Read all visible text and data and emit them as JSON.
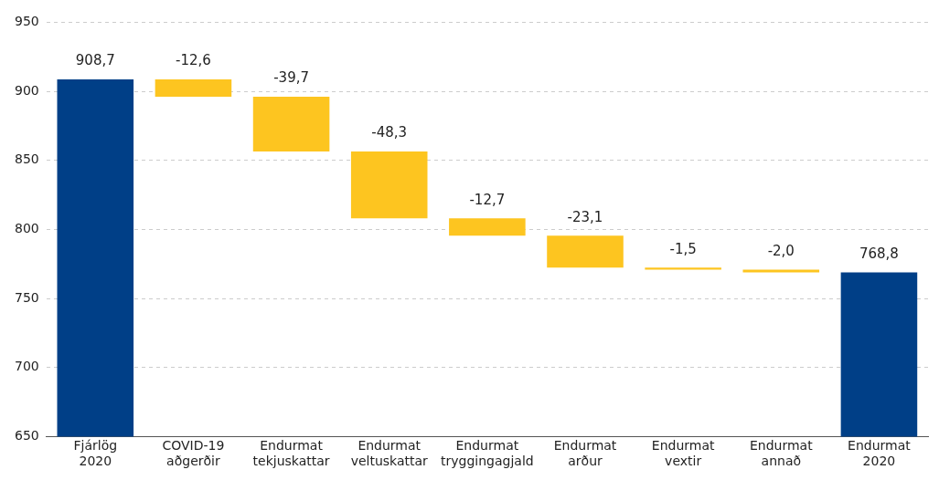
{
  "chart_data": {
    "type": "bar",
    "categories": [
      "Fjárlög\n2020",
      "COVID-19\naðgerðir",
      "Endurmat\ntekjuskattar",
      "Endurmat\nveltuskattar",
      "Endurmat\ntryggingagjald",
      "Endurmat\narður",
      "Endurmat\nvextir",
      "Endurmat\nannað",
      "Endurmat\n2020"
    ],
    "values": [
      908.7,
      -12.6,
      -39.7,
      -48.3,
      -12.7,
      -23.1,
      -1.5,
      -2.0,
      768.8
    ],
    "base": [
      0,
      908.7,
      896.1,
      856.4,
      808.1,
      795.4,
      772.3,
      770.8,
      0
    ],
    "colors": [
      "#003f87",
      "#fdc520",
      "#fdc520",
      "#fdc520",
      "#fdc520",
      "#fdc520",
      "#fdc520",
      "#fdc520",
      "#003f87"
    ],
    "value_labels": [
      "908,7",
      "-12,6",
      "-39,7",
      "-48,3",
      "-12,7",
      "-23,1",
      "-1,5",
      "-2,0",
      "768,8"
    ],
    "ylim": [
      650,
      950
    ],
    "yticks": [
      650,
      700,
      750,
      800,
      850,
      900,
      950
    ],
    "grid": "y",
    "legend": false
  }
}
